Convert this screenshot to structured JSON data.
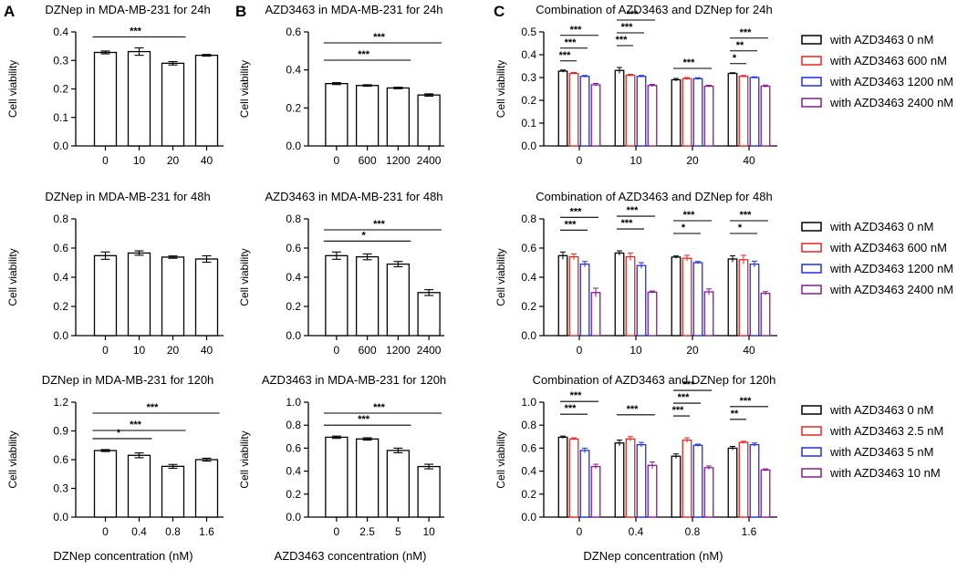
{
  "panel_letters": [
    "A",
    "B",
    "C"
  ],
  "xlabels": {
    "A": "DZNep concentration (nM)",
    "B": "AZD3463 concentration (nM)",
    "C": "DZNep concentration (nM)"
  },
  "colors": {
    "black": "#000000",
    "red": "#e8261f",
    "blue": "#1f2fe6",
    "purple": "#8b1a8f"
  },
  "chart_data": [
    {
      "type": "bar",
      "title": "DZNep in MDA-MB-231 for 24h",
      "ylabel": "Cell viability",
      "categories": [
        "0",
        "10",
        "20",
        "40"
      ],
      "values": [
        0.328,
        0.331,
        0.29,
        0.318
      ],
      "errors": [
        0.005,
        0.013,
        0.006,
        0.003
      ],
      "ylim": [
        0,
        0.4
      ],
      "yticks": [
        "0.0",
        "0.1",
        "0.2",
        "0.3",
        "0.4"
      ],
      "significance": [
        {
          "from": 0,
          "to": 2,
          "label": "***"
        }
      ]
    },
    {
      "type": "bar",
      "title": "AZD3463 in MDA-MB-231 for 24h",
      "ylabel": "Cell viability",
      "categories": [
        "0",
        "600",
        "1200",
        "2400"
      ],
      "values": [
        0.328,
        0.318,
        0.305,
        0.268
      ],
      "errors": [
        0.005,
        0.004,
        0.004,
        0.006
      ],
      "ylim": [
        0,
        0.6
      ],
      "yticks": [
        "0.0",
        "0.2",
        "0.4",
        "0.6"
      ],
      "significance": [
        {
          "from": 0,
          "to": 2,
          "label": "***"
        },
        {
          "from": 0,
          "to": 3,
          "label": "***"
        }
      ]
    },
    {
      "type": "bar",
      "title": "Combination of AZD3463 and DZNep for 24h",
      "ylabel": "Cell viability",
      "categories": [
        "0",
        "10",
        "20",
        "40"
      ],
      "ylim": [
        0,
        0.5
      ],
      "yticks": [
        "0.0",
        "0.1",
        "0.2",
        "0.3",
        "0.4",
        "0.5"
      ],
      "series": [
        {
          "name": "with AZD3463 0 nM",
          "color": "#000000",
          "values": [
            0.328,
            0.331,
            0.29,
            0.318
          ],
          "errors": [
            0.005,
            0.013,
            0.006,
            0.003
          ]
        },
        {
          "name": "with AZD3463 600 nM",
          "color": "#e8261f",
          "values": [
            0.318,
            0.31,
            0.295,
            0.305
          ],
          "errors": [
            0.004,
            0.004,
            0.005,
            0.004
          ]
        },
        {
          "name": "with AZD3463 1200 nM",
          "color": "#1f2fe6",
          "values": [
            0.305,
            0.305,
            0.295,
            0.3
          ],
          "errors": [
            0.004,
            0.004,
            0.004,
            0.003
          ]
        },
        {
          "name": "with AZD3463 2400 nM",
          "color": "#8b1a8f",
          "values": [
            0.268,
            0.265,
            0.262,
            0.262
          ],
          "errors": [
            0.006,
            0.005,
            0.004,
            0.005
          ]
        }
      ],
      "significance": [
        {
          "group": 0,
          "from": 0,
          "to": 3,
          "level": 3,
          "label": "***"
        },
        {
          "group": 0,
          "from": 0,
          "to": 2,
          "level": 2,
          "label": "***"
        },
        {
          "group": 0,
          "from": 0,
          "to": 1,
          "level": 1,
          "label": "***"
        },
        {
          "group": 1,
          "from": 0,
          "to": 3,
          "level": 4,
          "label": "***"
        },
        {
          "group": 1,
          "from": 0,
          "to": 2,
          "level": 3,
          "label": "***"
        },
        {
          "group": 1,
          "from": 0,
          "to": 1,
          "level": 2,
          "label": "***"
        },
        {
          "group": 2,
          "from": 0,
          "to": 3,
          "level": 1,
          "label": "***"
        },
        {
          "group": 3,
          "from": 0,
          "to": 3,
          "level": 3,
          "label": "***"
        },
        {
          "group": 3,
          "from": 0,
          "to": 2,
          "level": 2,
          "label": "**"
        },
        {
          "group": 3,
          "from": 0,
          "to": 1,
          "level": 1,
          "label": "*"
        }
      ]
    },
    {
      "type": "bar",
      "title": "DZNep in MDA-MB-231 for 48h",
      "ylabel": "Cell viability",
      "categories": [
        "0",
        "10",
        "20",
        "40"
      ],
      "values": [
        0.548,
        0.566,
        0.538,
        0.525
      ],
      "errors": [
        0.025,
        0.015,
        0.008,
        0.022
      ],
      "ylim": [
        0,
        0.8
      ],
      "yticks": [
        "0.0",
        "0.2",
        "0.4",
        "0.6",
        "0.8"
      ],
      "significance": []
    },
    {
      "type": "bar",
      "title": "AZD3463 in MDA-MB-231 for 48h",
      "ylabel": "Cell viability",
      "categories": [
        "0",
        "600",
        "1200",
        "2400"
      ],
      "values": [
        0.548,
        0.54,
        0.49,
        0.295
      ],
      "errors": [
        0.025,
        0.02,
        0.018,
        0.02
      ],
      "ylim": [
        0,
        0.8
      ],
      "yticks": [
        "0.0",
        "0.2",
        "0.4",
        "0.6",
        "0.8"
      ],
      "significance": [
        {
          "from": 0,
          "to": 2,
          "label": "*"
        },
        {
          "from": 0,
          "to": 3,
          "label": "***"
        }
      ]
    },
    {
      "type": "bar",
      "title": "Combination of AZD3463 and DZNep for 48h",
      "ylabel": "Cell viability",
      "categories": [
        "0",
        "10",
        "20",
        "40"
      ],
      "ylim": [
        0,
        0.8
      ],
      "yticks": [
        "0.0",
        "0.2",
        "0.4",
        "0.6",
        "0.8"
      ],
      "series": [
        {
          "name": "with AZD3463 0 nM",
          "color": "#000000",
          "values": [
            0.548,
            0.566,
            0.538,
            0.525
          ],
          "errors": [
            0.025,
            0.015,
            0.008,
            0.022
          ]
        },
        {
          "name": "with AZD3463 600 nM",
          "color": "#e8261f",
          "values": [
            0.54,
            0.54,
            0.53,
            0.52
          ],
          "errors": [
            0.02,
            0.025,
            0.02,
            0.03
          ]
        },
        {
          "name": "with AZD3463 1200 nM",
          "color": "#1f2fe6",
          "values": [
            0.49,
            0.48,
            0.5,
            0.49
          ],
          "errors": [
            0.018,
            0.02,
            0.008,
            0.02
          ]
        },
        {
          "name": "with AZD3463 2400 nM",
          "color": "#8b1a8f",
          "values": [
            0.295,
            0.298,
            0.3,
            0.29
          ],
          "errors": [
            0.03,
            0.008,
            0.02,
            0.012
          ]
        }
      ],
      "significance": [
        {
          "group": 0,
          "from": 0,
          "to": 3,
          "level": 3,
          "label": "***"
        },
        {
          "group": 0,
          "from": 0,
          "to": 2,
          "level": 2,
          "label": "***"
        },
        {
          "group": 1,
          "from": 0,
          "to": 3,
          "level": 3,
          "label": "***"
        },
        {
          "group": 1,
          "from": 0,
          "to": 2,
          "level": 2,
          "label": "***"
        },
        {
          "group": 2,
          "from": 0,
          "to": 3,
          "level": 3,
          "label": "***"
        },
        {
          "group": 2,
          "from": 0,
          "to": 2,
          "level": 2,
          "label": "*"
        },
        {
          "group": 3,
          "from": 0,
          "to": 3,
          "level": 3,
          "label": "***"
        },
        {
          "group": 3,
          "from": 0,
          "to": 2,
          "level": 2,
          "label": "*"
        }
      ]
    },
    {
      "type": "bar",
      "title": "DZNep in MDA-MB-231 for 120h",
      "ylabel": "Cell viability",
      "categories": [
        "0",
        "0.4",
        "0.8",
        "1.6"
      ],
      "values": [
        0.695,
        0.645,
        0.53,
        0.6
      ],
      "errors": [
        0.01,
        0.025,
        0.02,
        0.015
      ],
      "ylim": [
        0,
        1.2
      ],
      "yticks": [
        "0.0",
        "0.3",
        "0.6",
        "0.9",
        "1.2"
      ],
      "significance": [
        {
          "from": 0,
          "to": 1,
          "label": "*"
        },
        {
          "from": 0,
          "to": 2,
          "label": "***"
        },
        {
          "from": 0,
          "to": 3,
          "label": "***"
        }
      ]
    },
    {
      "type": "bar",
      "title": "AZD3463 in MDA-MB-231 for 120h",
      "ylabel": "Cell viability",
      "categories": [
        "0",
        "2.5",
        "5",
        "10"
      ],
      "values": [
        0.695,
        0.68,
        0.58,
        0.44
      ],
      "errors": [
        0.01,
        0.01,
        0.02,
        0.02
      ],
      "ylim": [
        0,
        1.0
      ],
      "yticks": [
        "0.0",
        "0.2",
        "0.4",
        "0.6",
        "0.8",
        "1.0"
      ],
      "significance": [
        {
          "from": 0,
          "to": 2,
          "label": "***"
        },
        {
          "from": 0,
          "to": 3,
          "label": "***"
        }
      ]
    },
    {
      "type": "bar",
      "title": "Combination of AZD3463 and DZNep for 120h",
      "ylabel": "Cell viability",
      "categories": [
        "0",
        "0.4",
        "0.8",
        "1.6"
      ],
      "ylim": [
        0,
        1.0
      ],
      "yticks": [
        "0.0",
        "0.2",
        "0.4",
        "0.6",
        "0.8",
        "1.0"
      ],
      "series": [
        {
          "name": "with AZD3463 0 nM",
          "color": "#000000",
          "values": [
            0.695,
            0.645,
            0.53,
            0.6
          ],
          "errors": [
            0.01,
            0.025,
            0.02,
            0.015
          ]
        },
        {
          "name": "with AZD3463 2.5 nM",
          "color": "#e8261f",
          "values": [
            0.68,
            0.68,
            0.67,
            0.65
          ],
          "errors": [
            0.01,
            0.02,
            0.02,
            0.01
          ]
        },
        {
          "name": "with AZD3463 5 nM",
          "color": "#1f2fe6",
          "values": [
            0.58,
            0.63,
            0.625,
            0.63
          ],
          "errors": [
            0.02,
            0.02,
            0.01,
            0.015
          ]
        },
        {
          "name": "with AZD3463 10 nM",
          "color": "#8b1a8f",
          "values": [
            0.44,
            0.45,
            0.43,
            0.41
          ],
          "errors": [
            0.02,
            0.03,
            0.015,
            0.01
          ]
        }
      ],
      "significance": [
        {
          "group": 0,
          "from": 0,
          "to": 3,
          "level": 3,
          "label": "***"
        },
        {
          "group": 0,
          "from": 0,
          "to": 2,
          "level": 2,
          "label": "***"
        },
        {
          "group": 1,
          "from": 0,
          "to": 3,
          "level": 2,
          "label": "***"
        },
        {
          "group": 2,
          "from": 0,
          "to": 3,
          "level": 4,
          "label": "***"
        },
        {
          "group": 2,
          "from": 0,
          "to": 2,
          "level": 3,
          "label": "***"
        },
        {
          "group": 2,
          "from": 0,
          "to": 1,
          "level": 2,
          "label": "***"
        },
        {
          "group": 3,
          "from": 0,
          "to": 3,
          "level": 3,
          "label": "***"
        },
        {
          "group": 3,
          "from": 0,
          "to": 1,
          "level": 2,
          "label": "**"
        }
      ]
    }
  ]
}
